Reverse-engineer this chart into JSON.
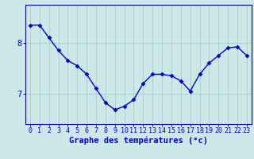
{
  "x": [
    0,
    1,
    2,
    3,
    4,
    5,
    6,
    7,
    8,
    9,
    10,
    11,
    12,
    13,
    14,
    15,
    16,
    17,
    18,
    19,
    20,
    21,
    22,
    23
  ],
  "y": [
    8.35,
    8.35,
    8.1,
    7.85,
    7.65,
    7.55,
    7.38,
    7.1,
    6.82,
    6.68,
    6.75,
    6.88,
    7.2,
    7.38,
    7.38,
    7.35,
    7.25,
    7.05,
    7.38,
    7.6,
    7.75,
    7.9,
    7.92,
    7.75
  ],
  "line_color": "#0000cc",
  "marker": "D",
  "marker_size": 2.5,
  "marker_color": "#0000cc",
  "bg_color": "#cce8e8",
  "grid_color": "#aacccc",
  "axis_color": "#0000aa",
  "xlabel": "Graphe des températures (°c)",
  "xlabel_fontsize": 7.5,
  "xlabel_color": "#0000cc",
  "ytick_labels": [
    "7",
    "8"
  ],
  "ytick_values": [
    7.0,
    8.0
  ],
  "ylim": [
    6.4,
    8.75
  ],
  "xlim": [
    -0.5,
    23.5
  ],
  "xtick_labels": [
    "0",
    "1",
    "2",
    "3",
    "4",
    "5",
    "6",
    "7",
    "8",
    "9",
    "10",
    "11",
    "12",
    "13",
    "14",
    "15",
    "16",
    "17",
    "18",
    "19",
    "20",
    "21",
    "22",
    "23"
  ],
  "tick_color": "#0000cc",
  "tick_fontsize": 6.0,
  "ytick_fontsize": 7.5,
  "line_width": 1.0
}
